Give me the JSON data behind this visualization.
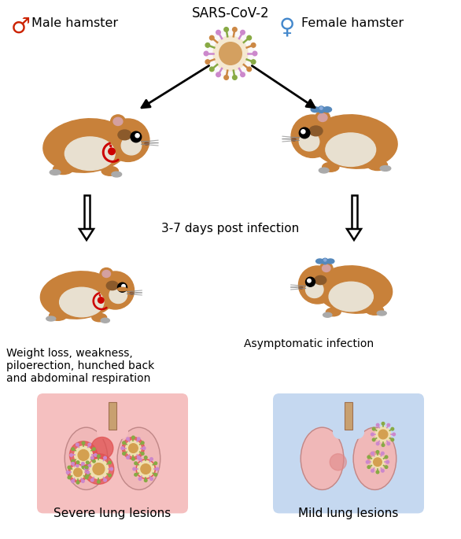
{
  "title": "SARS-CoV-2",
  "male_label": "Male hamster",
  "female_label": "Female hamster",
  "days_label": "3-7 days post infection",
  "male_symptom": "Weight loss, weakness,\npiloerection, hunched back\nand abdominal respiration",
  "female_symptom": "Asymptomatic infection",
  "male_lung": "Severe lung lesions",
  "female_lung": "Mild lung lesions",
  "male_symbol_color": "#cc2200",
  "female_symbol_color": "#4488cc",
  "bg_color": "#ffffff",
  "lung_bg_male": "#f5c0c0",
  "lung_bg_female": "#c5d8f0",
  "hamster_body_color": "#c8813a",
  "hamster_belly_color": "#e8d5b0",
  "hamster_ear_inner": "#d4a0a0",
  "hamster_white_patch": "#e8e0d0",
  "bow_color": "#5588bb",
  "red_accessory": "#cc0000",
  "virus_center": "#f5e8d0",
  "virus_inner": "#d4a060",
  "virus_spike_line": "#888820",
  "virus_spike_tip": "#cc88cc",
  "lung_color": "#f0b8b8",
  "lung_outline": "#c08888",
  "trachea_color": "#c8a070",
  "lesion_color_severe": "#e05050",
  "lesion_color_mild": "#e08888"
}
